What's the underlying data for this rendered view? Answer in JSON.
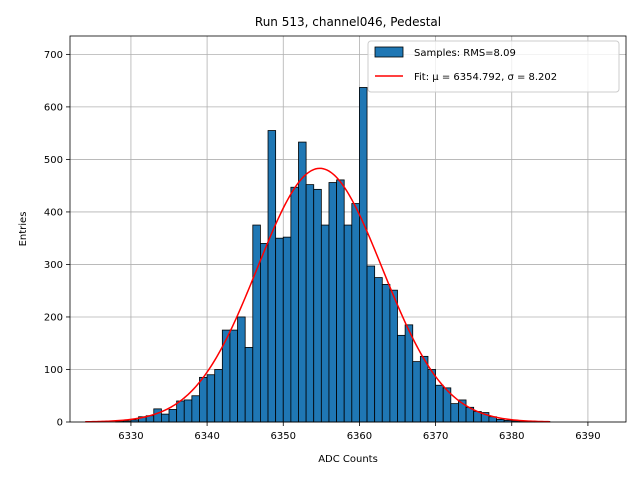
{
  "chart_data": {
    "type": "bar",
    "title": "Run 513, channel046, Pedestal",
    "xlabel": "ADC Counts",
    "ylabel": "Entries",
    "xlim": [
      6322,
      6395
    ],
    "ylim": [
      0,
      735
    ],
    "xticks": [
      6330,
      6340,
      6350,
      6360,
      6370,
      6380,
      6390
    ],
    "yticks": [
      0,
      100,
      200,
      300,
      400,
      500,
      600,
      700
    ],
    "grid": true,
    "legend_position": "top-right",
    "bin_width": 1,
    "series": [
      {
        "name": "Samples: RMS=8.09",
        "type": "histogram",
        "color": "#1f77b4",
        "edge_color": "#000000",
        "bins": [
          6328,
          6329,
          6330,
          6331,
          6332,
          6333,
          6334,
          6335,
          6336,
          6337,
          6338,
          6339,
          6340,
          6341,
          6342,
          6343,
          6344,
          6345,
          6346,
          6347,
          6348,
          6349,
          6350,
          6351,
          6352,
          6353,
          6354,
          6355,
          6356,
          6357,
          6358,
          6359,
          6360,
          6361,
          6362,
          6363,
          6364,
          6365,
          6366,
          6367,
          6368,
          6369,
          6370,
          6371,
          6372,
          6373,
          6374,
          6375,
          6376,
          6377,
          6378,
          6379,
          6380,
          6381,
          6382,
          6383,
          6384
        ],
        "values": [
          1,
          2,
          4,
          10,
          12,
          25,
          15,
          24,
          40,
          42,
          50,
          85,
          90,
          100,
          175,
          175,
          200,
          142,
          375,
          340,
          555,
          350,
          352,
          447,
          533,
          452,
          443,
          375,
          456,
          461,
          375,
          416,
          637,
          297,
          275,
          262,
          251,
          165,
          185,
          115,
          125,
          100,
          70,
          65,
          35,
          42,
          28,
          20,
          18,
          10,
          5,
          3,
          2,
          1,
          1,
          1,
          1
        ]
      },
      {
        "name": "Fit: μ = 6354.792, σ = 8.202",
        "type": "gaussian",
        "color": "#ff0000",
        "mu": 6354.792,
        "sigma": 8.202,
        "amplitude": 483,
        "x_range": [
          6324,
          6385
        ]
      }
    ]
  }
}
